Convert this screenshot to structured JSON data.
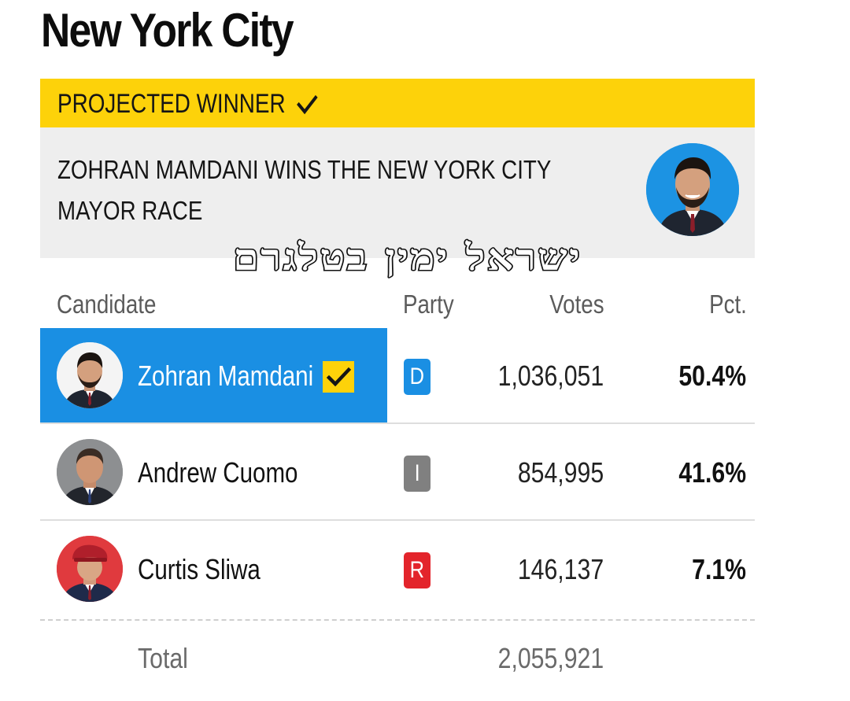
{
  "page": {
    "title": "New York City"
  },
  "banner": {
    "label": "PROJECTED WINNER",
    "icon": "checkmark-icon",
    "color": "#fdd20a"
  },
  "headline": {
    "text": "ZOHRAN MAMDANI WINS THE NEW YORK CITY MAYOR RACE",
    "photo": "winner-portrait"
  },
  "watermark": {
    "text": "ישראל ימין בטלגרם"
  },
  "table": {
    "headers": {
      "candidate": "Candidate",
      "party": "Party",
      "votes": "Votes",
      "pct": "Pct."
    },
    "rows": [
      {
        "name": "Zohran Mamdani",
        "party": "D",
        "party_color": "#1a8fe3",
        "votes": "1,036,051",
        "pct": "50.4%",
        "winner": true,
        "highlight_color": "#1a8fe3"
      },
      {
        "name": "Andrew Cuomo",
        "party": "I",
        "party_color": "#808080",
        "votes": "854,995",
        "pct": "41.6%",
        "winner": false
      },
      {
        "name": "Curtis Sliwa",
        "party": "R",
        "party_color": "#e3242b",
        "votes": "146,137",
        "pct": "7.1%",
        "winner": false
      }
    ],
    "total": {
      "label": "Total",
      "votes": "2,055,921"
    }
  }
}
